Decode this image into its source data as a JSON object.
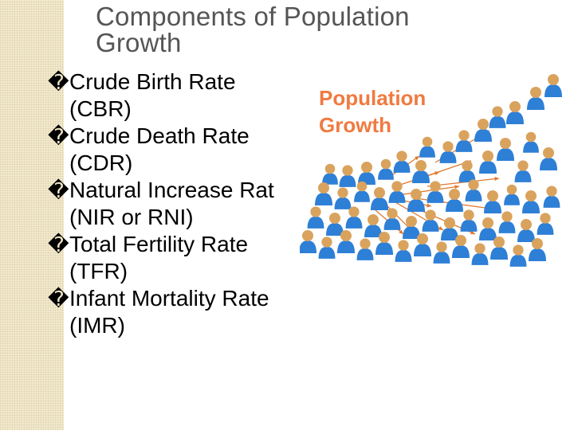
{
  "slide": {
    "title_line1": "Components of Population",
    "title_line2": "Growth",
    "bullet_marker": "�",
    "bullets": [
      {
        "line1": "Crude Birth Rate",
        "line2": "(CBR)"
      },
      {
        "line1": "Crude Death Rate",
        "line2": "(CDR)"
      },
      {
        "line1": "Natural Increase Rat",
        "line2": "(NIR or RNI)"
      },
      {
        "line1": "Total Fertility Rate",
        "line2": "(TFR)"
      },
      {
        "line1": "Infant Mortality Rate",
        "line2": "(IMR)"
      }
    ]
  },
  "illustration": {
    "heading_line1": "Population",
    "heading_line2": "Growth",
    "colors": {
      "heading": "#f07a40",
      "body": "#2e7fd6",
      "head": "#d9a35e",
      "arrow": "#e0782e"
    }
  }
}
